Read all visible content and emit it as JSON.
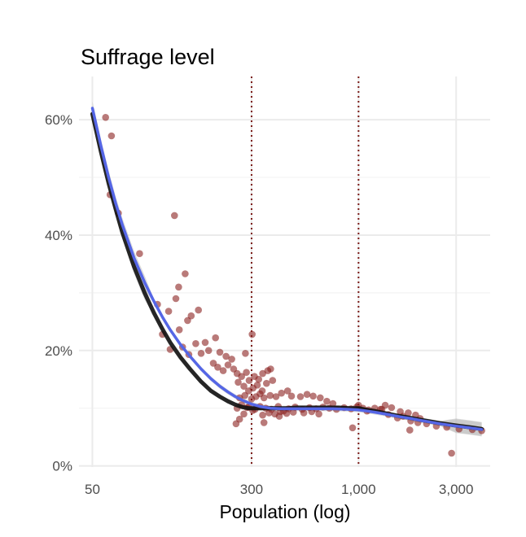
{
  "chart_data": {
    "type": "scatter",
    "title": "Suffrage level",
    "xlabel": "Population (log)",
    "ylabel": "",
    "x_scale": "log",
    "xlim": [
      43,
      4400
    ],
    "ylim": [
      -0.002,
      0.675
    ],
    "x_ticks": [
      50,
      300,
      1000,
      3000
    ],
    "x_tick_labels": [
      "50",
      "300",
      "1,000",
      "3,000"
    ],
    "y_ticks": [
      0,
      0.2,
      0.4,
      0.6
    ],
    "y_tick_labels": [
      "0%",
      "20%",
      "40%",
      "60%"
    ],
    "grid": true,
    "legend": "none",
    "reference_lines": [
      {
        "axis": "x",
        "value": 300,
        "style": "dotted",
        "color": "#7b1a17"
      },
      {
        "axis": "x",
        "value": 1000,
        "style": "dotted",
        "color": "#7b1a17"
      }
    ],
    "colors": {
      "points": "#8b2220",
      "trend_black": "#111111",
      "trend_blue": "#5566e6",
      "ribbon": "#bdbdbd",
      "grid": "#ebebeb"
    },
    "points": [
      {
        "x": 58,
        "y": 0.604
      },
      {
        "x": 62,
        "y": 0.572
      },
      {
        "x": 61,
        "y": 0.47
      },
      {
        "x": 67,
        "y": 0.438
      },
      {
        "x": 85,
        "y": 0.368
      },
      {
        "x": 126,
        "y": 0.434
      },
      {
        "x": 142,
        "y": 0.333
      },
      {
        "x": 132,
        "y": 0.31
      },
      {
        "x": 128,
        "y": 0.29
      },
      {
        "x": 165,
        "y": 0.27
      },
      {
        "x": 152,
        "y": 0.26
      },
      {
        "x": 133,
        "y": 0.236
      },
      {
        "x": 104,
        "y": 0.28
      },
      {
        "x": 118,
        "y": 0.268
      },
      {
        "x": 110,
        "y": 0.228
      },
      {
        "x": 146,
        "y": 0.252
      },
      {
        "x": 120,
        "y": 0.202
      },
      {
        "x": 138,
        "y": 0.206
      },
      {
        "x": 160,
        "y": 0.212
      },
      {
        "x": 178,
        "y": 0.214
      },
      {
        "x": 200,
        "y": 0.222
      },
      {
        "x": 148,
        "y": 0.193
      },
      {
        "x": 170,
        "y": 0.195
      },
      {
        "x": 185,
        "y": 0.2
      },
      {
        "x": 210,
        "y": 0.197
      },
      {
        "x": 225,
        "y": 0.19
      },
      {
        "x": 240,
        "y": 0.185
      },
      {
        "x": 280,
        "y": 0.195
      },
      {
        "x": 302,
        "y": 0.228
      },
      {
        "x": 195,
        "y": 0.178
      },
      {
        "x": 205,
        "y": 0.171
      },
      {
        "x": 218,
        "y": 0.165
      },
      {
        "x": 230,
        "y": 0.175
      },
      {
        "x": 245,
        "y": 0.168
      },
      {
        "x": 255,
        "y": 0.16
      },
      {
        "x": 268,
        "y": 0.155
      },
      {
        "x": 283,
        "y": 0.162
      },
      {
        "x": 292,
        "y": 0.148
      },
      {
        "x": 310,
        "y": 0.155
      },
      {
        "x": 325,
        "y": 0.15
      },
      {
        "x": 340,
        "y": 0.16
      },
      {
        "x": 360,
        "y": 0.165
      },
      {
        "x": 372,
        "y": 0.168
      },
      {
        "x": 258,
        "y": 0.145
      },
      {
        "x": 275,
        "y": 0.138
      },
      {
        "x": 290,
        "y": 0.13
      },
      {
        "x": 305,
        "y": 0.135
      },
      {
        "x": 320,
        "y": 0.14
      },
      {
        "x": 338,
        "y": 0.13
      },
      {
        "x": 355,
        "y": 0.143
      },
      {
        "x": 380,
        "y": 0.148
      },
      {
        "x": 262,
        "y": 0.118
      },
      {
        "x": 278,
        "y": 0.122
      },
      {
        "x": 300,
        "y": 0.116
      },
      {
        "x": 315,
        "y": 0.12
      },
      {
        "x": 330,
        "y": 0.125
      },
      {
        "x": 345,
        "y": 0.118
      },
      {
        "x": 370,
        "y": 0.122
      },
      {
        "x": 395,
        "y": 0.12
      },
      {
        "x": 420,
        "y": 0.126
      },
      {
        "x": 450,
        "y": 0.13
      },
      {
        "x": 470,
        "y": 0.121
      },
      {
        "x": 520,
        "y": 0.12
      },
      {
        "x": 560,
        "y": 0.124
      },
      {
        "x": 600,
        "y": 0.121
      },
      {
        "x": 650,
        "y": 0.118
      },
      {
        "x": 700,
        "y": 0.112
      },
      {
        "x": 750,
        "y": 0.108
      },
      {
        "x": 255,
        "y": 0.1
      },
      {
        "x": 268,
        "y": 0.106
      },
      {
        "x": 285,
        "y": 0.101
      },
      {
        "x": 312,
        "y": 0.098
      },
      {
        "x": 330,
        "y": 0.103
      },
      {
        "x": 352,
        "y": 0.1
      },
      {
        "x": 375,
        "y": 0.098
      },
      {
        "x": 405,
        "y": 0.103
      },
      {
        "x": 430,
        "y": 0.095
      },
      {
        "x": 455,
        "y": 0.099
      },
      {
        "x": 490,
        "y": 0.102
      },
      {
        "x": 530,
        "y": 0.098
      },
      {
        "x": 575,
        "y": 0.101
      },
      {
        "x": 620,
        "y": 0.099
      },
      {
        "x": 670,
        "y": 0.102
      },
      {
        "x": 720,
        "y": 0.1
      },
      {
        "x": 780,
        "y": 0.098
      },
      {
        "x": 850,
        "y": 0.101
      },
      {
        "x": 920,
        "y": 0.099
      },
      {
        "x": 980,
        "y": 0.102
      },
      {
        "x": 1050,
        "y": 0.1
      },
      {
        "x": 1120,
        "y": 0.097
      },
      {
        "x": 1200,
        "y": 0.1
      },
      {
        "x": 1280,
        "y": 0.098
      },
      {
        "x": 340,
        "y": 0.088
      },
      {
        "x": 365,
        "y": 0.092
      },
      {
        "x": 390,
        "y": 0.09
      },
      {
        "x": 415,
        "y": 0.094
      },
      {
        "x": 445,
        "y": 0.091
      },
      {
        "x": 480,
        "y": 0.093
      },
      {
        "x": 540,
        "y": 0.092
      },
      {
        "x": 590,
        "y": 0.094
      },
      {
        "x": 640,
        "y": 0.09
      },
      {
        "x": 1000,
        "y": 0.105
      },
      {
        "x": 1100,
        "y": 0.095
      },
      {
        "x": 1300,
        "y": 0.098
      },
      {
        "x": 1400,
        "y": 0.089
      },
      {
        "x": 1550,
        "y": 0.083
      },
      {
        "x": 1650,
        "y": 0.086
      },
      {
        "x": 1800,
        "y": 0.078
      },
      {
        "x": 1950,
        "y": 0.075
      },
      {
        "x": 2150,
        "y": 0.073
      },
      {
        "x": 2400,
        "y": 0.069
      },
      {
        "x": 2700,
        "y": 0.067
      },
      {
        "x": 3100,
        "y": 0.064
      },
      {
        "x": 3600,
        "y": 0.063
      },
      {
        "x": 4000,
        "y": 0.061
      },
      {
        "x": 1350,
        "y": 0.105
      },
      {
        "x": 1450,
        "y": 0.101
      },
      {
        "x": 1600,
        "y": 0.094
      },
      {
        "x": 1750,
        "y": 0.092
      },
      {
        "x": 1900,
        "y": 0.088
      },
      {
        "x": 2000,
        "y": 0.082
      },
      {
        "x": 252,
        "y": 0.073
      },
      {
        "x": 262,
        "y": 0.081
      },
      {
        "x": 275,
        "y": 0.09
      },
      {
        "x": 290,
        "y": 0.102
      },
      {
        "x": 304,
        "y": 0.096
      },
      {
        "x": 345,
        "y": 0.075
      },
      {
        "x": 410,
        "y": 0.086
      },
      {
        "x": 935,
        "y": 0.066
      },
      {
        "x": 1780,
        "y": 0.062
      },
      {
        "x": 2850,
        "y": 0.022
      }
    ],
    "series": [
      {
        "type": "trend-line",
        "color": "#111111",
        "x": [
          50,
          55,
          60,
          65,
          70,
          80,
          90,
          100,
          110,
          120,
          135,
          150,
          170,
          190,
          210,
          230,
          250,
          270,
          290,
          300,
          320,
          350,
          400,
          450,
          500,
          600,
          700,
          800,
          900,
          1000,
          1100,
          1200,
          1400,
          1600,
          1800,
          2000,
          2500,
          3000,
          3500,
          4000
        ],
        "y": [
          0.61,
          0.545,
          0.49,
          0.445,
          0.405,
          0.345,
          0.3,
          0.265,
          0.237,
          0.214,
          0.188,
          0.168,
          0.146,
          0.13,
          0.12,
          0.112,
          0.106,
          0.102,
          0.1,
          0.1,
          0.1,
          0.1,
          0.1,
          0.1,
          0.101,
          0.101,
          0.101,
          0.101,
          0.1,
          0.1,
          0.097,
          0.095,
          0.09,
          0.086,
          0.083,
          0.08,
          0.074,
          0.07,
          0.067,
          0.064
        ]
      },
      {
        "type": "trend-line",
        "color": "#5566e6",
        "x": [
          50,
          55,
          60,
          65,
          70,
          80,
          90,
          100,
          110,
          120,
          135,
          150,
          170,
          190,
          210,
          230,
          250,
          270,
          300,
          330,
          370,
          420,
          480,
          550,
          650,
          750,
          900,
          1000,
          1100,
          1200,
          1400,
          1600,
          1800,
          2000,
          2500,
          3000,
          3500,
          4000
        ],
        "y": [
          0.62,
          0.555,
          0.5,
          0.455,
          0.418,
          0.36,
          0.318,
          0.285,
          0.258,
          0.236,
          0.21,
          0.19,
          0.168,
          0.151,
          0.138,
          0.128,
          0.12,
          0.114,
          0.107,
          0.103,
          0.1,
          0.099,
          0.099,
          0.099,
          0.099,
          0.099,
          0.098,
          0.097,
          0.095,
          0.093,
          0.089,
          0.085,
          0.082,
          0.079,
          0.073,
          0.069,
          0.066,
          0.063
        ]
      }
    ]
  }
}
